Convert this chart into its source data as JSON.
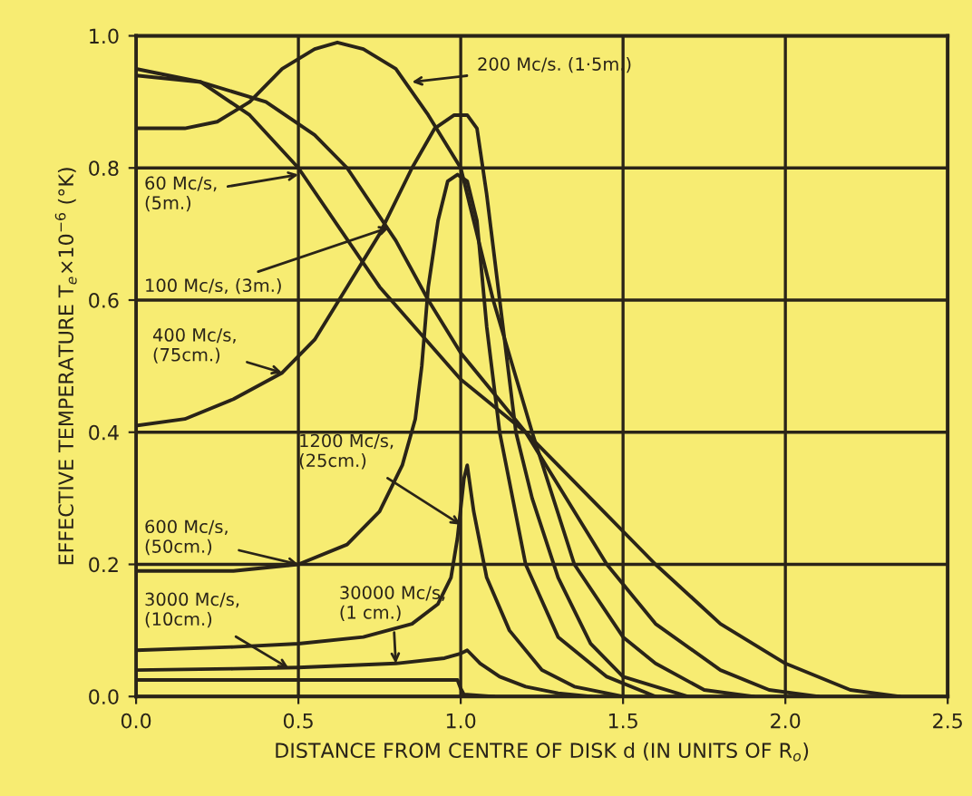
{
  "chart_data": {
    "type": "line",
    "xlabel": "DISTANCE FROM CENTRE OF DISK d (IN UNITS OF R$_{o}$)",
    "ylabel": "EFFECTIVE TEMPERATURE T$_{e}$×10$^{−6}$ (°K)",
    "xlim": [
      0,
      2.5
    ],
    "ylim": [
      0,
      1.0
    ],
    "xticks": [
      {
        "value": 0,
        "label": "0.0"
      },
      {
        "value": 0.5,
        "label": "0.5"
      },
      {
        "value": 1.0,
        "label": "1.0"
      },
      {
        "value": 1.5,
        "label": "1.5"
      },
      {
        "value": 2.0,
        "label": "2.0"
      },
      {
        "value": 2.5,
        "label": "2.5"
      }
    ],
    "yticks": [
      {
        "value": 0,
        "label": "0.0"
      },
      {
        "value": 0.2,
        "label": "0.2"
      },
      {
        "value": 0.4,
        "label": "0.4"
      },
      {
        "value": 0.6,
        "label": "0.6"
      },
      {
        "value": 0.8,
        "label": "0.8"
      },
      {
        "value": 1.0,
        "label": "1.0"
      }
    ],
    "grid": true,
    "legend": false,
    "marker": "none",
    "line_style": "solid",
    "series": [
      {
        "color": "#2a2418",
        "x": [
          0,
          0.2,
          0.35,
          0.5,
          0.75,
          1.0,
          1.2,
          1.4,
          1.6,
          1.8,
          2.0,
          2.2,
          2.35
        ],
        "values": [
          0.95,
          0.93,
          0.88,
          0.8,
          0.62,
          0.48,
          0.4,
          0.3,
          0.2,
          0.11,
          0.05,
          0.01,
          0
        ]
      },
      {
        "color": "#2a2418",
        "x": [
          0,
          0.2,
          0.4,
          0.55,
          0.65,
          0.8,
          0.9,
          1.0,
          1.1,
          1.2,
          1.3,
          1.45,
          1.6,
          1.8,
          1.95,
          2.1
        ],
        "values": [
          0.94,
          0.93,
          0.9,
          0.85,
          0.8,
          0.69,
          0.6,
          0.52,
          0.46,
          0.4,
          0.32,
          0.2,
          0.11,
          0.04,
          0.01,
          0
        ]
      },
      {
        "color": "#2a2418",
        "x": [
          0,
          0.15,
          0.25,
          0.35,
          0.45,
          0.55,
          0.62,
          0.7,
          0.8,
          0.9,
          1.0,
          1.1,
          1.22,
          1.35,
          1.5,
          1.6,
          1.75,
          1.9
        ],
        "values": [
          0.86,
          0.86,
          0.87,
          0.9,
          0.95,
          0.98,
          0.99,
          0.98,
          0.95,
          0.88,
          0.8,
          0.6,
          0.4,
          0.2,
          0.09,
          0.05,
          0.01,
          0
        ]
      },
      {
        "color": "#2a2418",
        "x": [
          0,
          0.15,
          0.3,
          0.45,
          0.55,
          0.65,
          0.75,
          0.85,
          0.92,
          0.98,
          1.02,
          1.05,
          1.08,
          1.12,
          1.17,
          1.22,
          1.3,
          1.4,
          1.5,
          1.7
        ],
        "values": [
          0.41,
          0.42,
          0.45,
          0.49,
          0.54,
          0.62,
          0.7,
          0.8,
          0.86,
          0.88,
          0.88,
          0.86,
          0.76,
          0.6,
          0.4,
          0.3,
          0.18,
          0.08,
          0.03,
          0
        ]
      },
      {
        "color": "#2a2418",
        "x": [
          0,
          0.3,
          0.5,
          0.65,
          0.75,
          0.82,
          0.86,
          0.88,
          0.9,
          0.93,
          0.96,
          0.99,
          1.02,
          1.05,
          1.08,
          1.12,
          1.2,
          1.3,
          1.45,
          1.6
        ],
        "values": [
          0.19,
          0.19,
          0.2,
          0.23,
          0.28,
          0.35,
          0.42,
          0.5,
          0.62,
          0.72,
          0.78,
          0.79,
          0.78,
          0.72,
          0.56,
          0.4,
          0.2,
          0.09,
          0.03,
          0
        ]
      },
      {
        "color": "#2a2418",
        "x": [
          0,
          0.3,
          0.5,
          0.7,
          0.85,
          0.93,
          0.97,
          0.99,
          1.01,
          1.02,
          1.04,
          1.08,
          1.15,
          1.25,
          1.35,
          1.5
        ],
        "values": [
          0.07,
          0.075,
          0.08,
          0.09,
          0.11,
          0.14,
          0.18,
          0.24,
          0.33,
          0.35,
          0.28,
          0.18,
          0.1,
          0.04,
          0.015,
          0
        ]
      },
      {
        "color": "#2a2418",
        "x": [
          0,
          0.3,
          0.5,
          0.8,
          0.95,
          1.0,
          1.02,
          1.06,
          1.12,
          1.2,
          1.3,
          1.4
        ],
        "values": [
          0.04,
          0.042,
          0.044,
          0.05,
          0.058,
          0.065,
          0.07,
          0.05,
          0.03,
          0.015,
          0.005,
          0
        ]
      },
      {
        "color": "#2a2418",
        "x": [
          0,
          0.5,
          0.99,
          1.0,
          1.01,
          1.1
        ],
        "values": [
          0.025,
          0.025,
          0.025,
          0.012,
          0.003,
          0
        ]
      }
    ],
    "annotations": [
      {
        "text": "200 Mc/s. (1·5m.)",
        "x": 0.85,
        "y": 0.93
      },
      {
        "text": "60 Mc/s,\n(5m.)",
        "x": 0.5,
        "y": 0.79
      },
      {
        "text": "100 Mc/s, (3m.)",
        "x": 0.78,
        "y": 0.71
      },
      {
        "text": "400 Mc/s,\n(75cm.)",
        "x": 0.45,
        "y": 0.49
      },
      {
        "text": "1200 Mc/s,\n(25cm.)",
        "x": 1.0,
        "y": 0.26
      },
      {
        "text": "600 Mc/s,\n(50cm.)",
        "x": 0.5,
        "y": 0.2
      },
      {
        "text": "3000 Mc/s,\n(10cm.)",
        "x": 0.47,
        "y": 0.043
      },
      {
        "text": "30000 Mc/s,\n(1 cm.)",
        "x": 0.8,
        "y": 0.05
      }
    ]
  }
}
